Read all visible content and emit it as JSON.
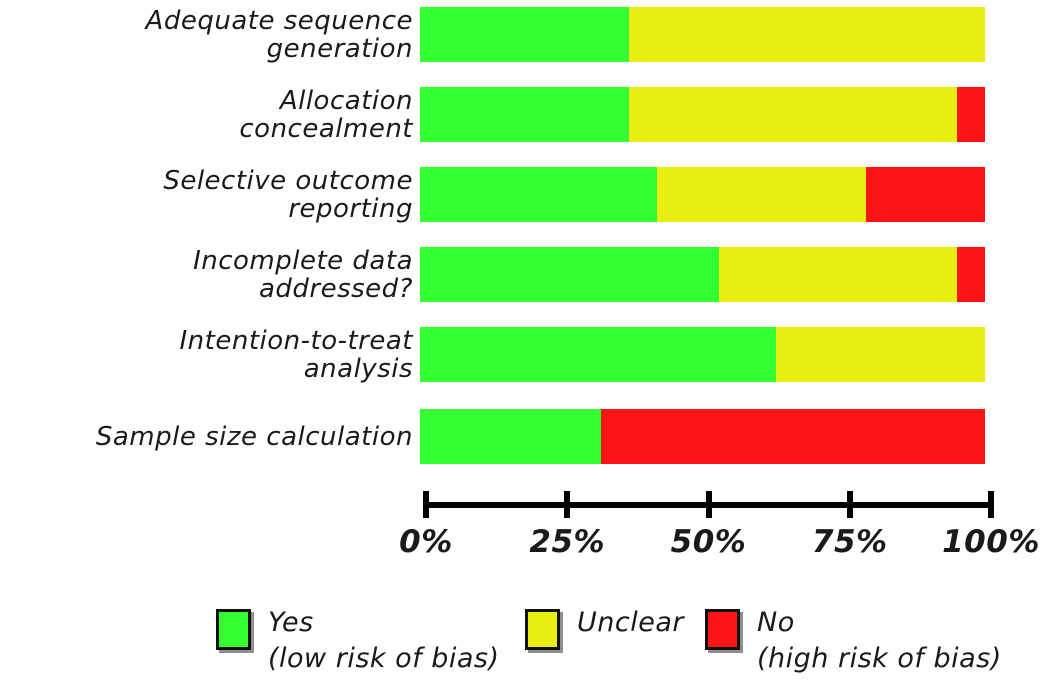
{
  "chart_data": {
    "type": "bar",
    "orientation": "horizontal",
    "stacked": true,
    "title": "",
    "xlabel": "",
    "ylabel": "",
    "xlim": [
      0,
      100
    ],
    "x_ticks": [
      "0%",
      "25%",
      "50%",
      "75%",
      "100%"
    ],
    "grid": false,
    "legend_position": "bottom",
    "categories": [
      "Adequate sequence generation",
      "Allocation concealment",
      "Selective outcome reporting",
      "Incomplete data addressed?",
      "Intention-to-treat analysis",
      "Sample size calculation"
    ],
    "category_display": [
      "Adequate sequence\ngeneration",
      "Allocation\nconcealment",
      "Selective outcome\nreporting",
      "Incomplete data\naddressed?",
      "Intention-to-treat\nanalysis",
      "Sample size calculation"
    ],
    "series": [
      {
        "name": "Yes (low risk of bias)",
        "key": "yes",
        "color": "#33ff33",
        "values": [
          37,
          37,
          42,
          53,
          63,
          32
        ]
      },
      {
        "name": "Unclear",
        "key": "unclear",
        "color": "#e8ee12",
        "values": [
          63,
          58,
          37,
          42,
          37,
          0
        ]
      },
      {
        "name": "No (high risk of bias)",
        "key": "no",
        "color": "#fa1414",
        "values": [
          0,
          5,
          21,
          5,
          0,
          68
        ]
      }
    ]
  },
  "legend": {
    "items": [
      {
        "label": "Yes",
        "sublabel": "(low risk of bias)",
        "color": "#33ff33"
      },
      {
        "label": "Unclear",
        "sublabel": "",
        "color": "#e8ee12"
      },
      {
        "label": "No",
        "sublabel": "(high risk of bias)",
        "color": "#fa1414"
      }
    ]
  }
}
